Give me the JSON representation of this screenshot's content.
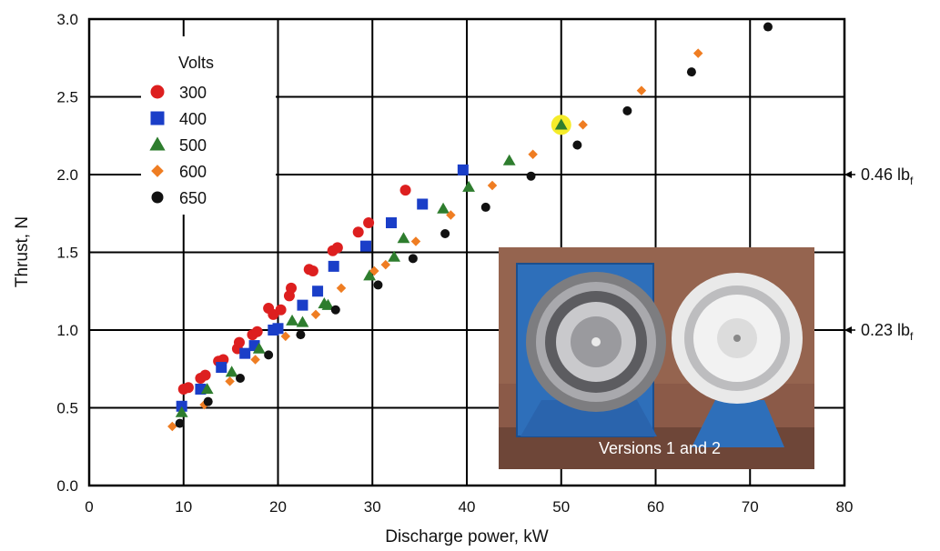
{
  "chart_data": {
    "type": "scatter",
    "xlabel": "Discharge power, kW",
    "ylabel": "Thrust, N",
    "xlim": [
      0,
      80
    ],
    "ylim": [
      0,
      3.0
    ],
    "x_ticks": [
      0,
      10,
      20,
      30,
      40,
      50,
      60,
      70,
      80
    ],
    "y_ticks": [
      "0.0",
      "0.5",
      "1.0",
      "1.5",
      "2.0",
      "2.5",
      "3.0"
    ],
    "grid": true,
    "legend": {
      "title": "Volts",
      "placement": "top-left"
    },
    "series": [
      {
        "name": "300",
        "marker": "circle",
        "color": "#dd1f1f",
        "points": [
          [
            10.0,
            0.62
          ],
          [
            10.5,
            0.63
          ],
          [
            11.8,
            0.69
          ],
          [
            12.3,
            0.71
          ],
          [
            13.7,
            0.8
          ],
          [
            14.2,
            0.81
          ],
          [
            15.7,
            0.88
          ],
          [
            15.9,
            0.92
          ],
          [
            17.3,
            0.97
          ],
          [
            17.8,
            0.99
          ],
          [
            19.0,
            1.14
          ],
          [
            19.5,
            1.1
          ],
          [
            20.3,
            1.13
          ],
          [
            21.2,
            1.22
          ],
          [
            21.4,
            1.27
          ],
          [
            23.3,
            1.39
          ],
          [
            23.7,
            1.38
          ],
          [
            25.8,
            1.51
          ],
          [
            26.3,
            1.53
          ],
          [
            28.5,
            1.63
          ],
          [
            29.6,
            1.69
          ],
          [
            33.5,
            1.9
          ]
        ]
      },
      {
        "name": "400",
        "marker": "square",
        "color": "#1a3ec8",
        "points": [
          [
            9.8,
            0.51
          ],
          [
            11.8,
            0.62
          ],
          [
            14.0,
            0.76
          ],
          [
            16.5,
            0.85
          ],
          [
            17.5,
            0.9
          ],
          [
            19.5,
            1.0
          ],
          [
            20.0,
            1.01
          ],
          [
            22.6,
            1.16
          ],
          [
            24.2,
            1.25
          ],
          [
            25.9,
            1.41
          ],
          [
            29.3,
            1.54
          ],
          [
            32.0,
            1.69
          ],
          [
            35.3,
            1.81
          ],
          [
            39.6,
            2.03
          ]
        ]
      },
      {
        "name": "500",
        "marker": "triangle",
        "color": "#2e7d2e",
        "points": [
          [
            9.8,
            0.47
          ],
          [
            12.5,
            0.62
          ],
          [
            15.1,
            0.73
          ],
          [
            18.0,
            0.88
          ],
          [
            21.5,
            1.06
          ],
          [
            22.6,
            1.05
          ],
          [
            24.9,
            1.17
          ],
          [
            25.3,
            1.16
          ],
          [
            29.7,
            1.35
          ],
          [
            32.3,
            1.47
          ],
          [
            33.3,
            1.59
          ],
          [
            37.5,
            1.78
          ],
          [
            40.2,
            1.92
          ],
          [
            44.5,
            2.09
          ],
          [
            50.0,
            2.32
          ]
        ]
      },
      {
        "name": "600",
        "marker": "diamond",
        "color": "#ef7d22",
        "points": [
          [
            8.8,
            0.38
          ],
          [
            12.2,
            0.52
          ],
          [
            14.9,
            0.67
          ],
          [
            17.6,
            0.81
          ],
          [
            20.8,
            0.96
          ],
          [
            24.0,
            1.1
          ],
          [
            26.7,
            1.27
          ],
          [
            30.2,
            1.38
          ],
          [
            31.4,
            1.42
          ],
          [
            34.6,
            1.57
          ],
          [
            38.3,
            1.74
          ],
          [
            42.7,
            1.93
          ],
          [
            47.0,
            2.13
          ],
          [
            52.3,
            2.32
          ],
          [
            58.5,
            2.54
          ],
          [
            64.5,
            2.78
          ]
        ]
      },
      {
        "name": "650",
        "marker": "circle",
        "color": "#111111",
        "points": [
          [
            9.6,
            0.4
          ],
          [
            12.6,
            0.54
          ],
          [
            16.0,
            0.69
          ],
          [
            19.0,
            0.84
          ],
          [
            22.4,
            0.97
          ],
          [
            26.1,
            1.13
          ],
          [
            30.6,
            1.29
          ],
          [
            34.3,
            1.46
          ],
          [
            37.7,
            1.62
          ],
          [
            42.0,
            1.79
          ],
          [
            46.8,
            1.99
          ],
          [
            51.7,
            2.19
          ],
          [
            57.0,
            2.41
          ],
          [
            63.8,
            2.66
          ],
          [
            71.9,
            2.95
          ]
        ]
      }
    ],
    "highlight": {
      "x": 50.0,
      "y": 2.32,
      "color": "#f5ec2a"
    },
    "annotations": [
      {
        "y": 2.0,
        "text": "0.46 lb",
        "sub": "f"
      },
      {
        "y": 1.0,
        "text": "0.23 lb",
        "sub": "f"
      }
    ],
    "inset_photo": {
      "caption": "Versions 1 and 2"
    }
  }
}
